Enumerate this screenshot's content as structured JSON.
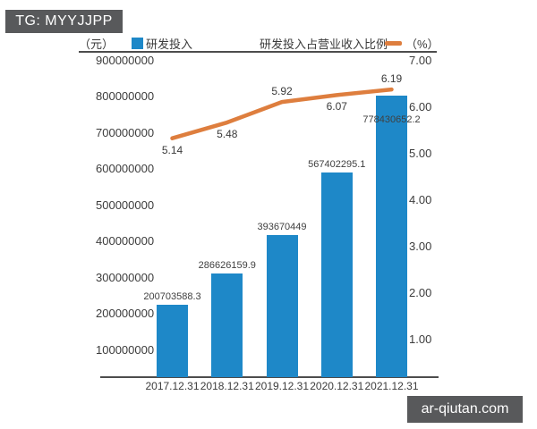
{
  "badge": {
    "text": "TG: MYYJJPP",
    "bg": "#58595b",
    "fg": "#ffffff"
  },
  "watermark": {
    "text": "ar-qiutan.com",
    "bg": "#58595b",
    "fg": "#ffffff"
  },
  "legend": {
    "left_unit": "（元）",
    "bar_label": "研发投入",
    "line_label": "研发投入占营业收入比例",
    "right_unit": "（%）"
  },
  "colors": {
    "bar": "#1e88c8",
    "line": "#de7e3e",
    "axis": "#4d4d4d",
    "text": "#3a3a3a"
  },
  "chart_data": {
    "type": "bar",
    "subtype": "bar-line combo, dual axis",
    "categories": [
      "2017.12.31",
      "2018.12.31",
      "2019.12.31",
      "2020.12.31",
      "2021.12.31"
    ],
    "series": [
      {
        "name": "研发投入",
        "type": "bar",
        "axis": "left",
        "unit": "元",
        "values": [
          200703588.3,
          286626159.9,
          393670449,
          567402295.1,
          778430652.2
        ],
        "labels": [
          "200703588.3",
          "286626159.9",
          "393670449",
          "567402295.1",
          "778430652.2"
        ]
      },
      {
        "name": "研发投入占营业收入比例",
        "type": "line",
        "axis": "right",
        "unit": "%",
        "values": [
          5.14,
          5.48,
          5.92,
          6.07,
          6.19
        ],
        "labels": [
          "5.14",
          "5.48",
          "5.92",
          "6.07",
          "6.19"
        ],
        "label_side": [
          "below",
          "below",
          "above",
          "below",
          "above"
        ]
      }
    ],
    "left_axis": {
      "min": 0,
      "max": 900000000,
      "ticks": [
        "900000000",
        "800000000",
        "700000000",
        "600000000",
        "500000000",
        "400000000",
        "300000000",
        "200000000",
        "100000000"
      ]
    },
    "right_axis": {
      "min": 0,
      "max": 7,
      "ticks": [
        "7.00",
        "6.00",
        "5.00",
        "4.00",
        "3.00",
        "2.00",
        "1.00"
      ]
    },
    "grid": false,
    "legend_position": "top"
  }
}
